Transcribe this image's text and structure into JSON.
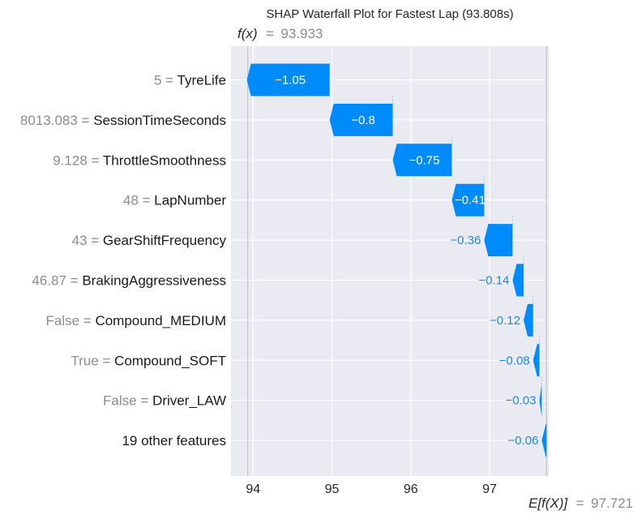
{
  "chart_data": {
    "type": "waterfall",
    "title": "SHAP Waterfall Plot for Fastest Lap (93.808s)",
    "fx_label": "f(x)",
    "fx_value": "93.933",
    "fx": 93.933,
    "base_label": "E[f(X)]",
    "base_value_text": "97.721",
    "base_value": 97.721,
    "xlim": [
      93.72,
      97.75
    ],
    "xticks": [
      94,
      95,
      96,
      97
    ],
    "grid": true,
    "colors": {
      "negative": "#008bfb",
      "background": "#eaeaf2",
      "grid": "#ffffff",
      "outside_label": "#1e88e5",
      "connector": "#bdbdbd"
    },
    "features": [
      {
        "value": "5",
        "name": "TyreLife",
        "shap": -1.05,
        "label": "−1.05"
      },
      {
        "value": "8013.083",
        "name": "SessionTimeSeconds",
        "shap": -0.8,
        "label": "−0.8"
      },
      {
        "value": "9.128",
        "name": "ThrottleSmoothness",
        "shap": -0.75,
        "label": "−0.75"
      },
      {
        "value": "48",
        "name": "LapNumber",
        "shap": -0.41,
        "label": "−0.41"
      },
      {
        "value": "43",
        "name": "GearShiftFrequency",
        "shap": -0.36,
        "label": "−0.36"
      },
      {
        "value": "46.87",
        "name": "BrakingAggressiveness",
        "shap": -0.14,
        "label": "−0.14"
      },
      {
        "value": "False",
        "name": "Compound_MEDIUM",
        "shap": -0.12,
        "label": "−0.12"
      },
      {
        "value": "True",
        "name": "Compound_SOFT",
        "shap": -0.08,
        "label": "−0.08"
      },
      {
        "value": "False",
        "name": "Driver_LAW",
        "shap": -0.03,
        "label": "−0.03"
      },
      {
        "value": "",
        "name": "19 other features",
        "shap": -0.06,
        "label": "−0.06"
      }
    ]
  }
}
